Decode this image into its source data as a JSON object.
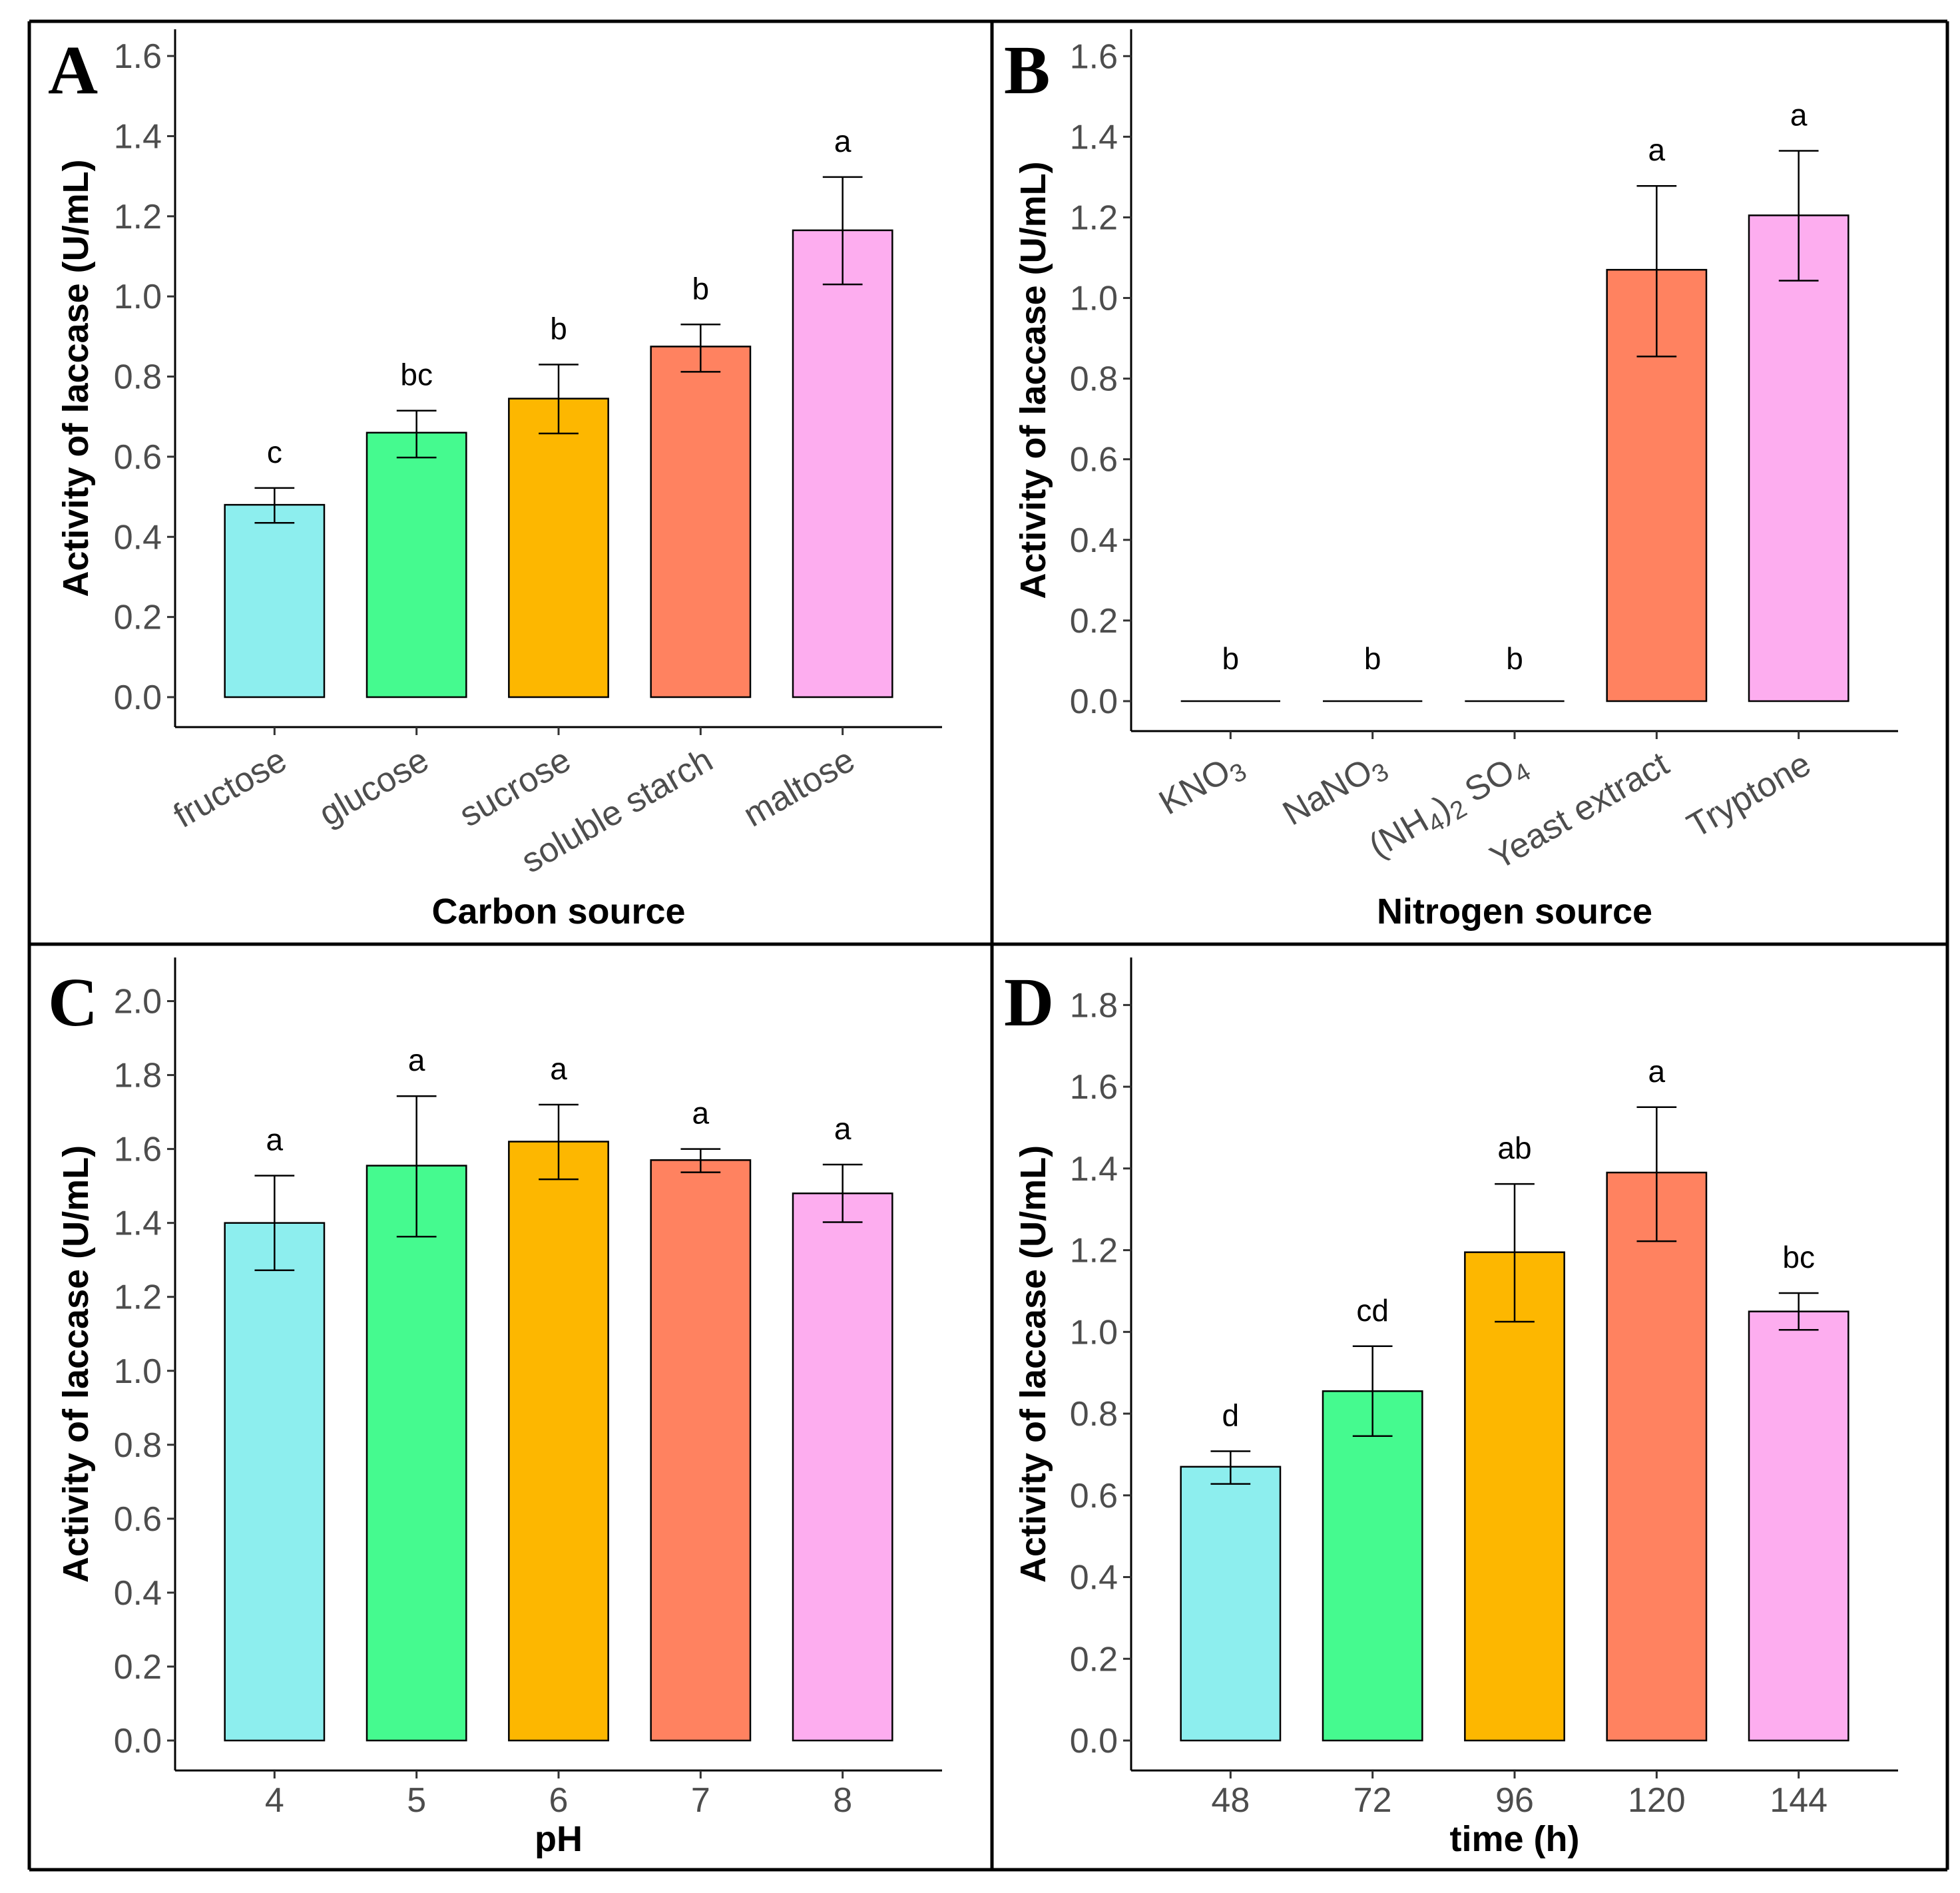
{
  "figure": {
    "description_labels": [
      "A",
      "B",
      "C",
      "D"
    ]
  },
  "chart_data": [
    {
      "panel": "A",
      "type": "bar",
      "xlabel": "Carbon source",
      "ylabel": "Activity of laccase (U/mL)",
      "ylim": [
        0,
        1.65
      ],
      "yticks": [
        "0.0",
        "0.2",
        "0.4",
        "0.6",
        "0.8",
        "1.0",
        "1.2",
        "1.4",
        "1.6"
      ],
      "ytick_values": [
        0,
        0.2,
        0.4,
        0.6,
        0.8,
        1.0,
        1.2,
        1.4,
        1.6
      ],
      "categories": [
        "fructose",
        "glucose",
        "sucrose",
        "soluble starch",
        "maltose"
      ],
      "category_labels": [
        [
          "fructose"
        ],
        [
          "glucose"
        ],
        [
          "sucrose"
        ],
        [
          "soluble starch"
        ],
        [
          "maltose"
        ]
      ],
      "tick_rotation": -30,
      "values": [
        0.48,
        0.66,
        0.745,
        0.875,
        1.165
      ],
      "err_low": [
        0.435,
        0.598,
        0.658,
        0.812,
        1.03
      ],
      "err_high": [
        0.522,
        0.715,
        0.83,
        0.93,
        1.298
      ],
      "letters": [
        "c",
        "bc",
        "b",
        "b",
        "a"
      ],
      "colors": [
        "#8DEEEE",
        "#45FA8F",
        "#FDB700",
        "#FF8260",
        "#FDADEF"
      ]
    },
    {
      "panel": "B",
      "type": "bar",
      "xlabel": "Nitrogen source",
      "ylabel": "Activity of laccase (U/mL)",
      "ylim": [
        0,
        1.65
      ],
      "yticks": [
        "0.0",
        "0.2",
        "0.4",
        "0.6",
        "0.8",
        "1.0",
        "1.2",
        "1.4",
        "1.6"
      ],
      "ytick_values": [
        0,
        0.2,
        0.4,
        0.6,
        0.8,
        1.0,
        1.2,
        1.4,
        1.6
      ],
      "categories": [
        "KNO3",
        "NaNO3",
        "(NH4)2 SO4",
        "Yeast extract",
        "Tryptone"
      ],
      "category_labels": [
        [
          "KNO",
          "3"
        ],
        [
          "NaNO",
          "3"
        ],
        [
          "(NH",
          "4",
          ")",
          "2",
          " SO",
          "4"
        ],
        [
          "Yeast extract"
        ],
        [
          "Tryptone"
        ]
      ],
      "tick_rotation": -30,
      "values": [
        0,
        0,
        0,
        1.07,
        1.205
      ],
      "err_low": [
        0,
        0,
        0,
        0.855,
        1.043
      ],
      "err_high": [
        0,
        0,
        0,
        1.278,
        1.365
      ],
      "letters": [
        "b",
        "b",
        "b",
        "a",
        "a"
      ],
      "colors": [
        "#8DEEEE",
        "#45FA8F",
        "#FDB700",
        "#FF8260",
        "#FDADEF"
      ]
    },
    {
      "panel": "C",
      "type": "bar",
      "xlabel": "pH",
      "ylabel": "Activity of laccase (U/mL)",
      "ylim": [
        0,
        2.1
      ],
      "yticks": [
        "0.0",
        "0.2",
        "0.4",
        "0.6",
        "0.8",
        "1.0",
        "1.2",
        "1.4",
        "1.6",
        "1.8",
        "2.0"
      ],
      "ytick_values": [
        0,
        0.2,
        0.4,
        0.6,
        0.8,
        1.0,
        1.2,
        1.4,
        1.6,
        1.8,
        2.0
      ],
      "categories": [
        "4",
        "5",
        "6",
        "7",
        "8"
      ],
      "category_labels": [
        [
          "4"
        ],
        [
          "5"
        ],
        [
          "6"
        ],
        [
          "7"
        ],
        [
          "8"
        ]
      ],
      "tick_rotation": 0,
      "values": [
        1.4,
        1.555,
        1.62,
        1.57,
        1.48
      ],
      "err_low": [
        1.272,
        1.363,
        1.518,
        1.537,
        1.402
      ],
      "err_high": [
        1.528,
        1.743,
        1.72,
        1.6,
        1.558
      ],
      "letters": [
        "a",
        "a",
        "a",
        "a",
        "a"
      ],
      "colors": [
        "#8DEEEE",
        "#45FA8F",
        "#FDB700",
        "#FF8260",
        "#FDADEF"
      ]
    },
    {
      "panel": "D",
      "type": "bar",
      "xlabel": "time (h)",
      "ylabel": "Activity of laccase (U/mL)",
      "ylim": [
        0,
        1.9
      ],
      "yticks": [
        "0.0",
        "0.2",
        "0.4",
        "0.6",
        "0.8",
        "1.0",
        "1.2",
        "1.4",
        "1.6",
        "1.8"
      ],
      "ytick_values": [
        0,
        0.2,
        0.4,
        0.6,
        0.8,
        1.0,
        1.2,
        1.4,
        1.6,
        1.8
      ],
      "categories": [
        "48",
        "72",
        "96",
        "120",
        "144"
      ],
      "category_labels": [
        [
          "48"
        ],
        [
          "72"
        ],
        [
          "96"
        ],
        [
          "120"
        ],
        [
          "144"
        ]
      ],
      "tick_rotation": 0,
      "values": [
        0.67,
        0.855,
        1.195,
        1.39,
        1.05
      ],
      "err_low": [
        0.628,
        0.745,
        1.025,
        1.222,
        1.005
      ],
      "err_high": [
        0.708,
        0.965,
        1.362,
        1.55,
        1.095
      ],
      "letters": [
        "d",
        "cd",
        "ab",
        "a",
        "bc"
      ],
      "colors": [
        "#8DEEEE",
        "#45FA8F",
        "#FDB700",
        "#FF8260",
        "#FDADEF"
      ]
    }
  ]
}
